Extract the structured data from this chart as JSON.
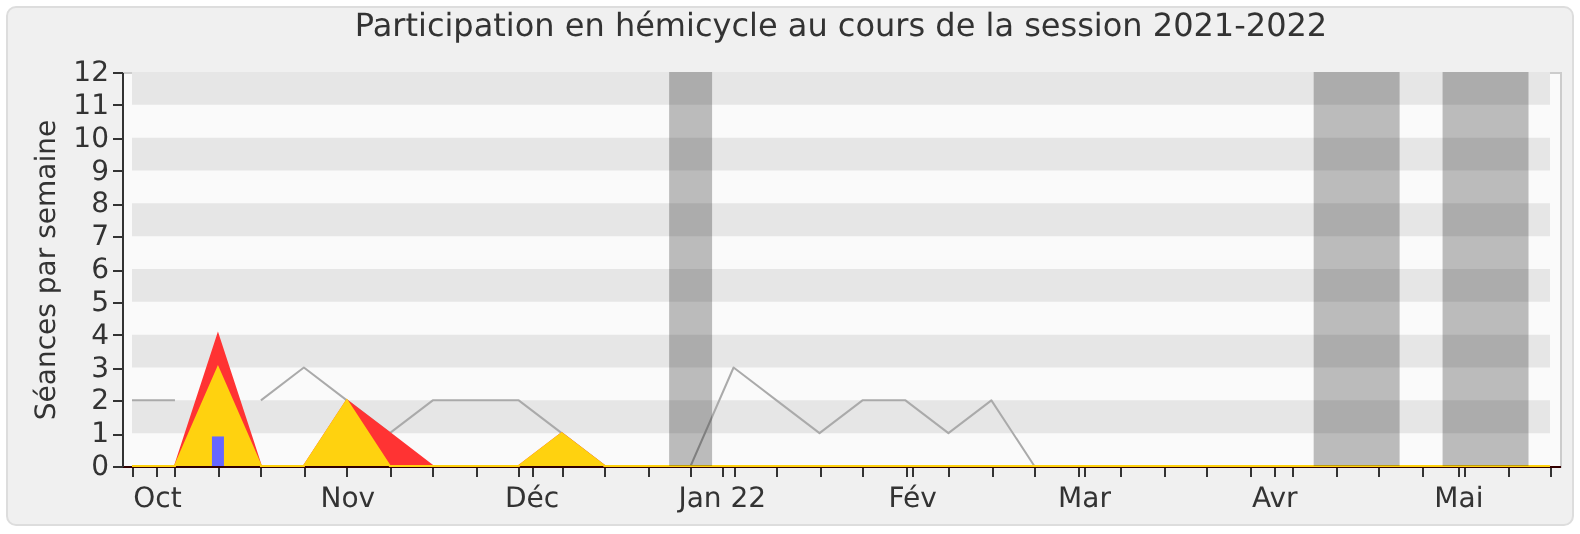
{
  "chart_data": {
    "type": "area",
    "title": "Participation en hémicycle au cours de la session 2021-2022",
    "ylabel": "Séances par semaine",
    "x": [
      "2021-09-27",
      "2021-10-04",
      "2021-10-11",
      "2021-10-18",
      "2021-10-25",
      "2021-11-01",
      "2021-11-08",
      "2021-11-15",
      "2021-11-22",
      "2021-11-29",
      "2021-12-06",
      "2021-12-13",
      "2021-12-20",
      "2021-12-27",
      "2022-01-03",
      "2022-01-10",
      "2022-01-17",
      "2022-01-24",
      "2022-01-31",
      "2022-02-07",
      "2022-02-14",
      "2022-02-21",
      "2022-02-28",
      "2022-03-07",
      "2022-03-14",
      "2022-03-21",
      "2022-03-28",
      "2022-04-04",
      "2022-04-11",
      "2022-04-18",
      "2022-04-25",
      "2022-05-02",
      "2022-05-09",
      "2022-05-16"
    ],
    "series": [
      {
        "type": "line",
        "color": "#aaaaaa",
        "values": [
          2,
          2,
          null,
          2,
          3,
          2,
          1,
          2,
          2,
          2,
          1,
          0,
          0,
          0,
          3,
          2,
          1,
          2,
          2,
          1,
          2,
          0,
          null,
          null,
          null,
          null,
          null,
          null,
          null,
          null,
          null,
          null,
          null,
          null
        ]
      },
      {
        "color": "#ff3333",
        "values": [
          0,
          0,
          4,
          0,
          0,
          2,
          1,
          0,
          0,
          0,
          1,
          0,
          0,
          0,
          0,
          0,
          0,
          0,
          0,
          0,
          0,
          0,
          0,
          0,
          0,
          0,
          0,
          0,
          0,
          0,
          0,
          0,
          0,
          0
        ]
      },
      {
        "color": "#ffd20f",
        "values": [
          0,
          0,
          3,
          0,
          0,
          2,
          0,
          0,
          0,
          0,
          1,
          0,
          0,
          0,
          0,
          0,
          0,
          0,
          0,
          0,
          0,
          0,
          0,
          0,
          0,
          0,
          0,
          0,
          0,
          0,
          0,
          0,
          0,
          0
        ]
      },
      {
        "type": "bar",
        "color": "#6666ff",
        "x": [
          "2021-10-11"
        ],
        "values": [
          0.9
        ]
      }
    ],
    "xlim": [
      "2021-09-27",
      "2022-05-16"
    ],
    "xticks": [
      {
        "value": "2021-09-27",
        "label": null
      },
      {
        "value": "2021-10-01",
        "label": "Oct"
      },
      {
        "value": "2021-10-04",
        "label": null
      },
      {
        "value": "2021-10-11",
        "label": null
      },
      {
        "value": "2021-10-18",
        "label": null
      },
      {
        "value": "2021-10-25",
        "label": null
      },
      {
        "value": "2021-11-01",
        "label": "Nov"
      },
      {
        "value": "2021-11-08",
        "label": null
      },
      {
        "value": "2021-11-15",
        "label": null
      },
      {
        "value": "2021-11-22",
        "label": null
      },
      {
        "value": "2021-11-29",
        "label": null
      },
      {
        "value": "2021-12-01",
        "label": "Déc"
      },
      {
        "value": "2021-12-06",
        "label": null
      },
      {
        "value": "2021-12-13",
        "label": null
      },
      {
        "value": "2021-12-20",
        "label": null
      },
      {
        "value": "2021-12-27",
        "label": null
      },
      {
        "value": "2022-01-01",
        "label": "Jan 22"
      },
      {
        "value": "2022-01-03",
        "label": null
      },
      {
        "value": "2022-01-10",
        "label": null
      },
      {
        "value": "2022-01-17",
        "label": null
      },
      {
        "value": "2022-01-24",
        "label": null
      },
      {
        "value": "2022-01-31",
        "label": null
      },
      {
        "value": "2022-02-01",
        "label": "Fév"
      },
      {
        "value": "2022-02-07",
        "label": null
      },
      {
        "value": "2022-02-14",
        "label": null
      },
      {
        "value": "2022-02-21",
        "label": null
      },
      {
        "value": "2022-02-28",
        "label": null
      },
      {
        "value": "2022-03-01",
        "label": "Mar"
      },
      {
        "value": "2022-03-07",
        "label": null
      },
      {
        "value": "2022-03-14",
        "label": null
      },
      {
        "value": "2022-03-21",
        "label": null
      },
      {
        "value": "2022-03-28",
        "label": null
      },
      {
        "value": "2022-04-01",
        "label": "Avr"
      },
      {
        "value": "2022-04-04",
        "label": null
      },
      {
        "value": "2022-04-11",
        "label": null
      },
      {
        "value": "2022-04-18",
        "label": null
      },
      {
        "value": "2022-04-25",
        "label": null
      },
      {
        "value": "2022-05-01",
        "label": "Mai"
      },
      {
        "value": "2022-05-02",
        "label": null
      },
      {
        "value": "2022-05-09",
        "label": null
      },
      {
        "value": "2022-05-16",
        "label": null
      }
    ],
    "ylim": [
      0,
      12
    ],
    "yticks": [
      0,
      1,
      2,
      3,
      4,
      5,
      6,
      7,
      8,
      9,
      10,
      11,
      12
    ],
    "bands": [
      {
        "axis": "y",
        "from": 1,
        "to": 2,
        "color": "#e6e6e6"
      },
      {
        "axis": "y",
        "from": 3,
        "to": 4,
        "color": "#e6e6e6"
      },
      {
        "axis": "y",
        "from": 5,
        "to": 6,
        "color": "#e6e6e6"
      },
      {
        "axis": "y",
        "from": 7,
        "to": 8,
        "color": "#e6e6e6"
      },
      {
        "axis": "y",
        "from": 9,
        "to": 10,
        "color": "#e6e6e6"
      },
      {
        "axis": "y",
        "from": 11,
        "to": 12,
        "color": "#e6e6e6"
      },
      {
        "axis": "x",
        "from": "2021-12-23T12:00",
        "to": "2021-12-30T12:00",
        "color": "#000000"
      },
      {
        "axis": "x",
        "from": "2022-04-07T12:00",
        "to": "2022-04-21T12:00",
        "color": "#000000"
      },
      {
        "axis": "x",
        "from": "2022-04-28T12:00",
        "to": "2022-05-12T12:00",
        "color": "#000000"
      }
    ],
    "grid": false
  }
}
